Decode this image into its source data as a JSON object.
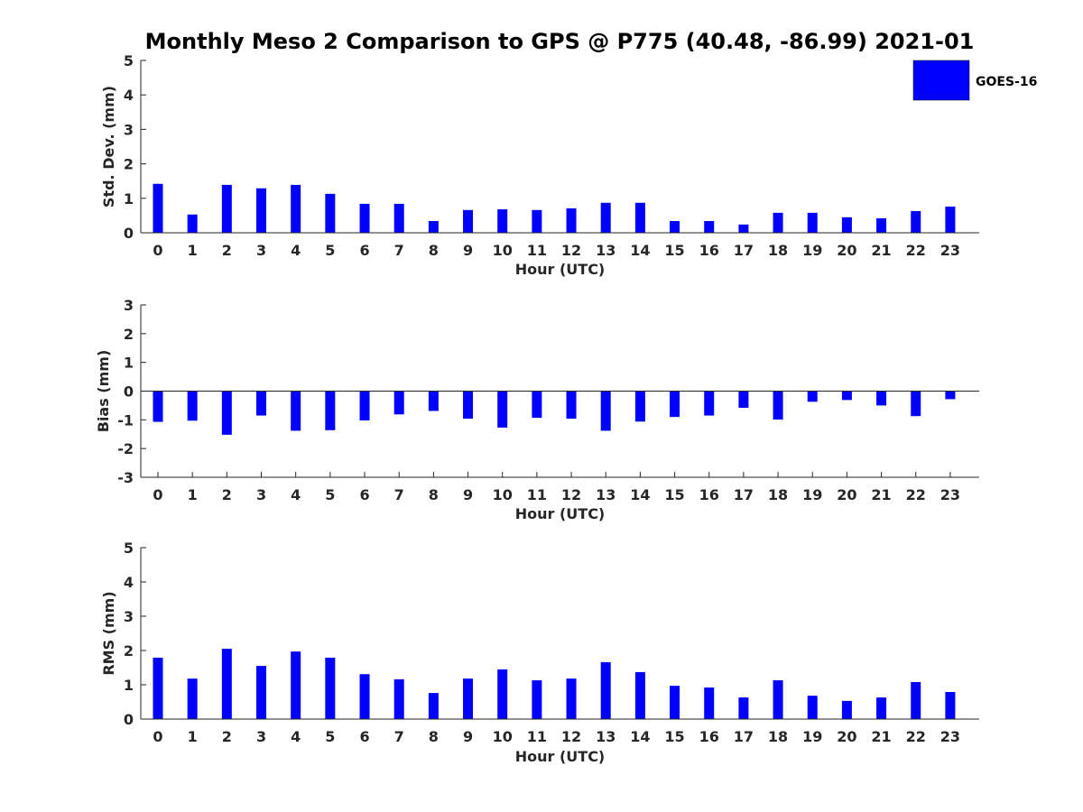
{
  "figure": {
    "title": "Monthly Meso 2 Comparison to GPS @ P775 (40.48, -86.99) 2021-01"
  },
  "legend": {
    "label": "GOES-16",
    "color": "#0000ff",
    "placement": "top-right"
  },
  "chart_data": [
    {
      "type": "bar",
      "xlabel": "Hour (UTC)",
      "ylabel": "Std. Dev. (mm)",
      "ylim": [
        0,
        5
      ],
      "yticks": [
        "0",
        "1",
        "2",
        "3",
        "4",
        "5"
      ],
      "categories": [
        "0",
        "1",
        "2",
        "3",
        "4",
        "5",
        "6",
        "7",
        "8",
        "9",
        "10",
        "11",
        "12",
        "13",
        "14",
        "15",
        "16",
        "17",
        "18",
        "19",
        "20",
        "21",
        "22",
        "23"
      ],
      "series": [
        {
          "name": "GOES-16",
          "color": "#0000ff",
          "values": [
            1.42,
            0.53,
            1.39,
            1.29,
            1.39,
            1.13,
            0.84,
            0.84,
            0.34,
            0.66,
            0.68,
            0.66,
            0.71,
            0.87,
            0.87,
            0.34,
            0.34,
            0.24,
            0.58,
            0.58,
            0.45,
            0.42,
            0.63,
            0.76
          ]
        }
      ]
    },
    {
      "type": "bar",
      "xlabel": "Hour (UTC)",
      "ylabel": "Bias (mm)",
      "ylim": [
        -3,
        3
      ],
      "yticks": [
        "-3",
        "-2",
        "-1",
        "0",
        "1",
        "2",
        "3"
      ],
      "categories": [
        "0",
        "1",
        "2",
        "3",
        "4",
        "5",
        "6",
        "7",
        "8",
        "9",
        "10",
        "11",
        "12",
        "13",
        "14",
        "15",
        "16",
        "17",
        "18",
        "19",
        "20",
        "21",
        "22",
        "23"
      ],
      "series": [
        {
          "name": "GOES-16",
          "color": "#0000ff",
          "values": [
            -1.07,
            -1.03,
            -1.52,
            -0.85,
            -1.38,
            -1.36,
            -1.02,
            -0.81,
            -0.69,
            -0.96,
            -1.27,
            -0.93,
            -0.96,
            -1.38,
            -1.06,
            -0.9,
            -0.85,
            -0.58,
            -0.99,
            -0.37,
            -0.31,
            -0.5,
            -0.87,
            -0.28
          ]
        }
      ]
    },
    {
      "type": "bar",
      "xlabel": "Hour (UTC)",
      "ylabel": "RMS (mm)",
      "ylim": [
        0,
        5
      ],
      "yticks": [
        "0",
        "1",
        "2",
        "3",
        "4",
        "5"
      ],
      "categories": [
        "0",
        "1",
        "2",
        "3",
        "4",
        "5",
        "6",
        "7",
        "8",
        "9",
        "10",
        "11",
        "12",
        "13",
        "14",
        "15",
        "16",
        "17",
        "18",
        "19",
        "20",
        "21",
        "22",
        "23"
      ],
      "series": [
        {
          "name": "GOES-16",
          "color": "#0000ff",
          "values": [
            1.79,
            1.18,
            2.05,
            1.55,
            1.97,
            1.79,
            1.31,
            1.16,
            0.76,
            1.18,
            1.45,
            1.13,
            1.18,
            1.66,
            1.37,
            0.97,
            0.92,
            0.63,
            1.13,
            0.68,
            0.53,
            0.63,
            1.08,
            0.79
          ]
        }
      ]
    }
  ]
}
